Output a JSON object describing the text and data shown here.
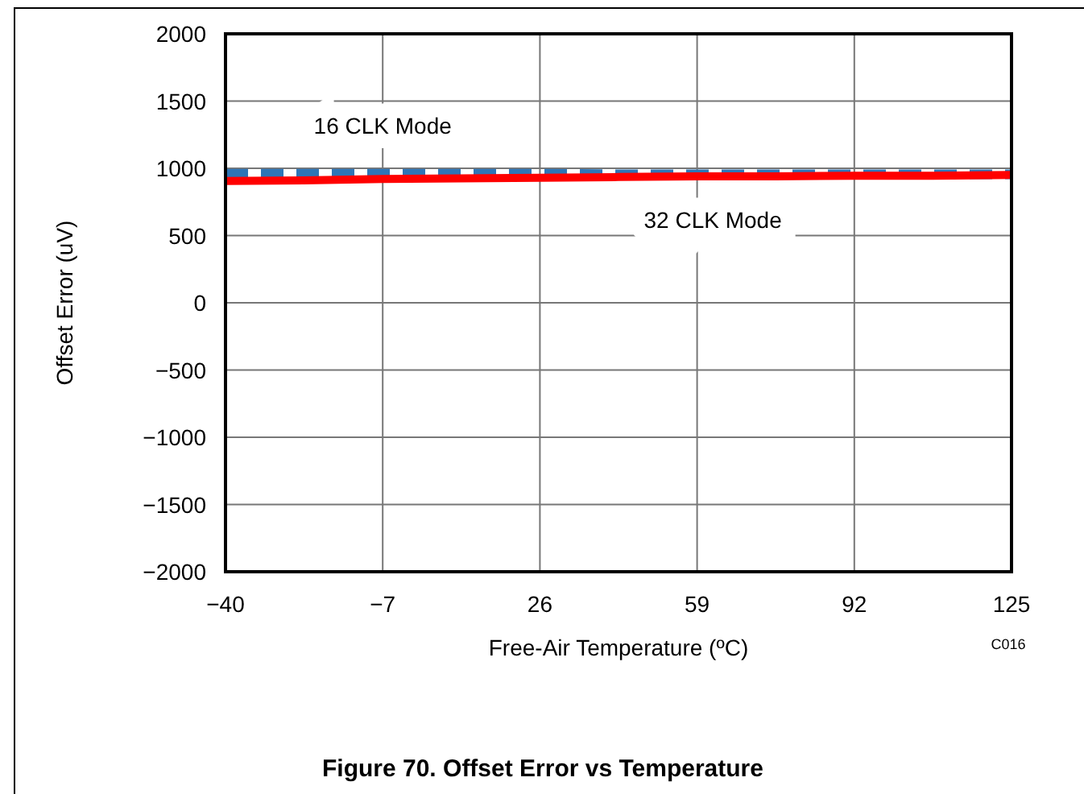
{
  "chart_data": {
    "type": "line",
    "title": "Figure 70. Offset Error vs Temperature",
    "xlabel": "Free-Air Temperature (ºC)",
    "ylabel": "Offset Error (uV)",
    "annotations": [
      "C016"
    ],
    "x": [
      -40,
      -23.5,
      -7,
      9.5,
      26,
      42.5,
      59,
      75.5,
      92,
      108.5,
      125
    ],
    "series": [
      {
        "name": "16 CLK Mode",
        "color": "#2e75b6",
        "line_style": "dashed",
        "values": [
          960,
          960,
          960,
          960,
          960,
          955,
          955,
          955,
          955,
          955,
          955
        ]
      },
      {
        "name": "32 CLK Mode",
        "color": "#ff0000",
        "line_style": "solid",
        "values": [
          905,
          910,
          920,
          925,
          930,
          935,
          940,
          940,
          945,
          945,
          950
        ]
      }
    ],
    "xlim": [
      -40,
      125
    ],
    "xticks": [
      -40,
      -7,
      26,
      59,
      92,
      125
    ],
    "ylim": [
      -2000,
      2000
    ],
    "yticks": [
      -2000,
      -1500,
      -1000,
      -500,
      0,
      500,
      1000,
      1500,
      2000
    ],
    "grid": true
  }
}
